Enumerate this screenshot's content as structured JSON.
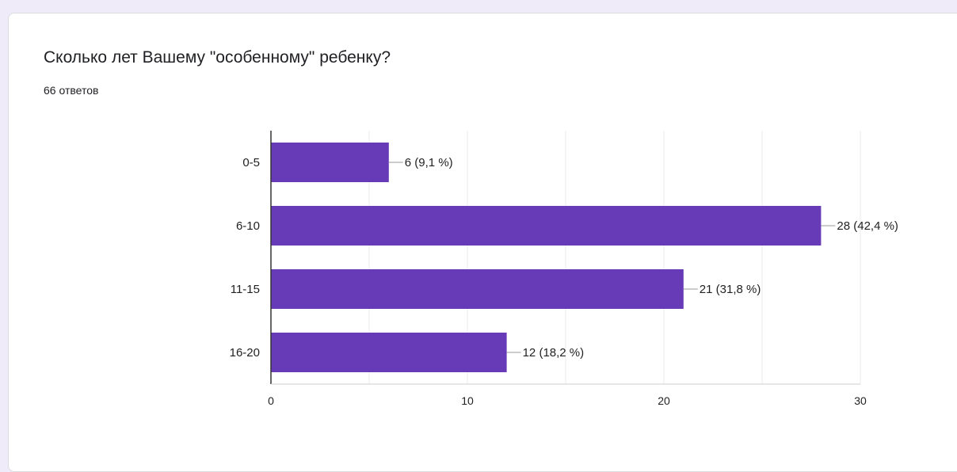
{
  "question": {
    "title": "Сколько лет Вашему \"особенному\" ребенку?",
    "responses": "66 ответов"
  },
  "colors": {
    "bar": "#673ab7",
    "grid": "#ebebeb",
    "axis": "#333333",
    "text": "#222222",
    "label_line": "#999999"
  },
  "chart_data": {
    "type": "bar",
    "orientation": "horizontal",
    "categories": [
      "0-5",
      "6-10",
      "11-15",
      "16-20"
    ],
    "values": [
      6,
      28,
      21,
      12
    ],
    "data_labels": [
      "6 (9,1 %)",
      "28 (42,4 %)",
      "21 (31,8 %)",
      "12 (18,2 %)"
    ],
    "xlim": [
      0,
      30
    ],
    "x_ticks": [
      0,
      10,
      20,
      30
    ],
    "x_tick_labels": [
      "0",
      "10",
      "20",
      "30"
    ],
    "grid": true
  }
}
